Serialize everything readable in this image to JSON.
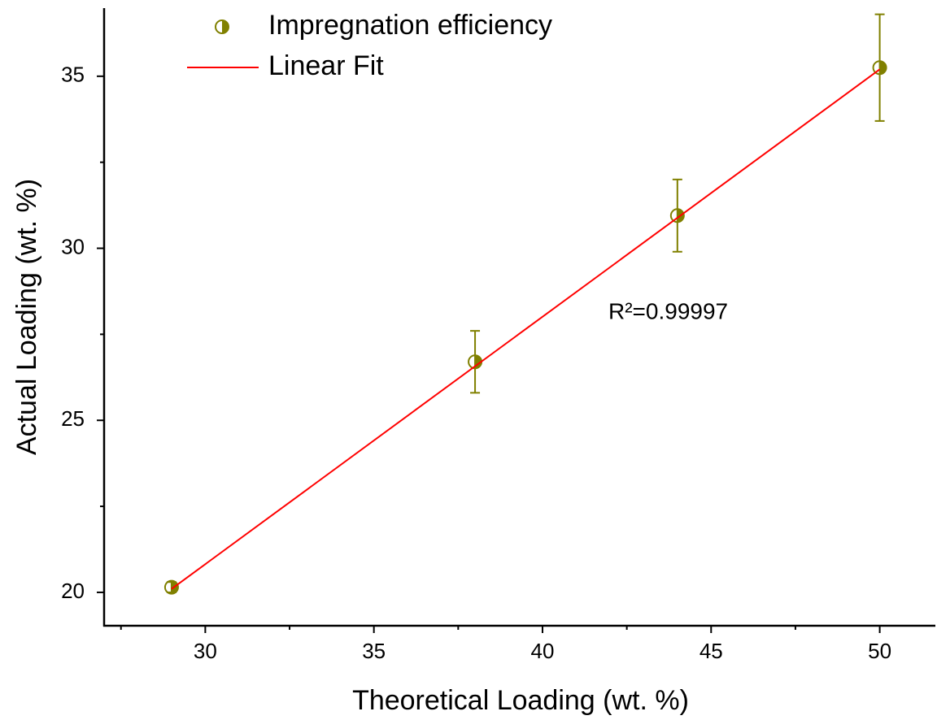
{
  "chart_data": {
    "type": "scatter",
    "x_label": "Theoretical Loading (wt. %)",
    "y_label": "Actual Loading (wt. %)",
    "annotation": "R²=0.99997",
    "x": [
      29,
      38,
      44,
      50
    ],
    "series": [
      {
        "name": "Impregnation efficiency",
        "color": "#808000",
        "values": [
          20.15,
          26.7,
          30.95,
          35.25
        ],
        "errors": [
          0.15,
          0.9,
          1.05,
          1.55
        ]
      },
      {
        "name": "Linear Fit",
        "type": "line",
        "color": "#ff0000",
        "x": [
          29,
          50
        ],
        "values": [
          20.1,
          35.2
        ]
      }
    ],
    "xlim": [
      27,
      51.65
    ],
    "ylim": [
      19.03,
      36.98
    ],
    "xticks": [
      30,
      35,
      40,
      45,
      50
    ],
    "yticks": [
      20,
      25,
      30,
      35
    ],
    "xminorticks": [
      27.5,
      32.5,
      37.5,
      42.5,
      47.5
    ],
    "yminorticks": [
      22.5,
      27.5,
      32.5
    ]
  }
}
